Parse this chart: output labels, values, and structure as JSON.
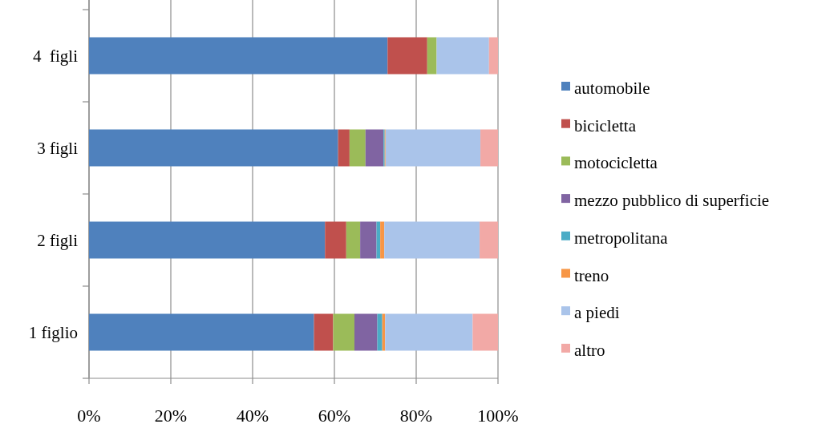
{
  "chart_data": {
    "type": "bar",
    "orientation": "horizontal",
    "stacked": true,
    "categories": [
      "4  figli",
      "3 figli",
      "2 figli",
      "1 figlio"
    ],
    "series": [
      {
        "name": "automobile",
        "color": "#4f81bd",
        "values": [
          73.0,
          60.9,
          57.7,
          55.0
        ]
      },
      {
        "name": "bicicletta",
        "color": "#c0504d",
        "values": [
          9.7,
          2.8,
          5.2,
          4.7
        ]
      },
      {
        "name": "motocicletta",
        "color": "#9bbb59",
        "values": [
          2.3,
          3.9,
          3.4,
          5.2
        ]
      },
      {
        "name": "mezzo pubblico di superficie",
        "color": "#8064a2",
        "values": [
          0,
          4.4,
          4.0,
          5.6
        ]
      },
      {
        "name": "metropolitana",
        "color": "#4bacc6",
        "values": [
          0,
          0.3,
          0.9,
          1.2
        ]
      },
      {
        "name": "treno",
        "color": "#f79646",
        "values": [
          0,
          0.2,
          1.0,
          0.7
        ]
      },
      {
        "name": "a piedi",
        "color": "#aac4ea",
        "values": [
          12.8,
          23.2,
          23.3,
          21.4
        ]
      },
      {
        "name": "altro",
        "color": "#f2a9a6",
        "values": [
          2.2,
          4.3,
          4.5,
          6.2
        ]
      }
    ],
    "xlim": [
      0,
      100
    ],
    "xticks": [
      {
        "value": 0,
        "label": "0%"
      },
      {
        "value": 20,
        "label": "20%"
      },
      {
        "value": 40,
        "label": "40%"
      },
      {
        "value": 60,
        "label": "60%"
      },
      {
        "value": 80,
        "label": "80%"
      },
      {
        "value": 100,
        "label": "100%"
      }
    ],
    "grid": "x",
    "legend": "right"
  }
}
